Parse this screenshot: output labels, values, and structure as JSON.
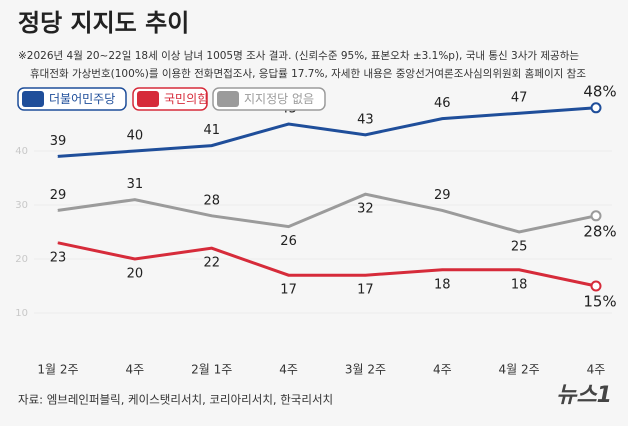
{
  "chart_data": {
    "type": "line",
    "title": "정당 지지도 추이",
    "subtitle": [
      "※2026년 4월 20~22일 18세 이상 남녀 1005명 조사 결과. (신뢰수준 95%, 표본오차 ±3.1%p), 국내 통신 3사가 제공하는",
      "휴대전화 가상번호(100%)를 이용한 전화면접조사, 응답률 17.7%, 자세한 내용은 중앙선거여론조사심의위원회 홈페이지 참조"
    ],
    "categories": [
      "1월 2주",
      "4주",
      "2월 1주",
      "4주",
      "3월 2주",
      "4주",
      "4월 2주",
      "4주"
    ],
    "series": [
      {
        "name": "더불어민주당",
        "color": "#1f4e9a",
        "values": [
          39,
          40,
          41,
          45,
          43,
          46,
          47,
          48
        ],
        "value_labels": [
          "39",
          "40",
          "41",
          "45",
          "43",
          "46",
          "47",
          "48%"
        ]
      },
      {
        "name": "국민의힘",
        "color": "#d62b3a",
        "values": [
          23,
          20,
          22,
          17,
          17,
          18,
          18,
          15
        ],
        "value_labels": [
          "23",
          "20",
          "22",
          "17",
          "17",
          "18",
          "18",
          "15%"
        ]
      },
      {
        "name": "지지정당 없음",
        "color": "#9b9b9b",
        "values": [
          29,
          31,
          28,
          26,
          32,
          29,
          25,
          28
        ],
        "value_labels": [
          "29",
          "31",
          "28",
          "26",
          "32",
          "29",
          "25",
          "28%"
        ]
      }
    ],
    "ylim": [
      5,
      50
    ],
    "yticks": [
      10,
      20,
      30,
      40
    ],
    "grid": true,
    "legend": "top-left",
    "source": "자료: 엠브레인퍼블릭, 케이스탯리서치, 코리아리서치, 한국리서치",
    "logo": "뉴스1"
  }
}
